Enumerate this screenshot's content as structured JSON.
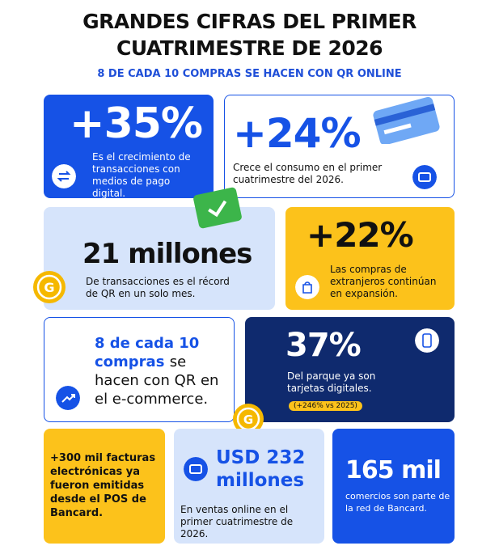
{
  "header": {
    "title_line1": "GRANDES CIFRAS DEL PRIMER",
    "title_line2": "CUATRIMESTRE DE 2026",
    "subtitle": "8 DE CADA 10 COMPRAS SE HACEN CON QR ONLINE"
  },
  "cards": [
    {
      "figure": "+35%",
      "text": "Es el crecimiento de transacciones con medios de pago digital."
    },
    {
      "figure": "+24%",
      "text": "Crece el consumo en el primer cuatrimestre del 2026."
    },
    {
      "figure": "21 millones",
      "text": "De transacciones es el récord de QR en un solo mes."
    },
    {
      "figure": "+22%",
      "text": "Las compras de extranjeros continúan en expansión."
    },
    {
      "highlight": "8 de cada 10 compras",
      "text": "se hacen con QR en el e-commerce."
    },
    {
      "figure": "37%",
      "text": "Del parque ya son tarjetas digitales.",
      "badge": "(+246% vs 2025)"
    },
    {
      "text": "+300 mil facturas electrónicas ya fueron emitidas desde el POS de Bancard."
    },
    {
      "figure": "USD 232 millones",
      "text": "En ventas online en el primer cuatrimestre de 2026."
    },
    {
      "figure": "165 mil",
      "text": "comercios son parte de la red de Bancard."
    }
  ]
}
